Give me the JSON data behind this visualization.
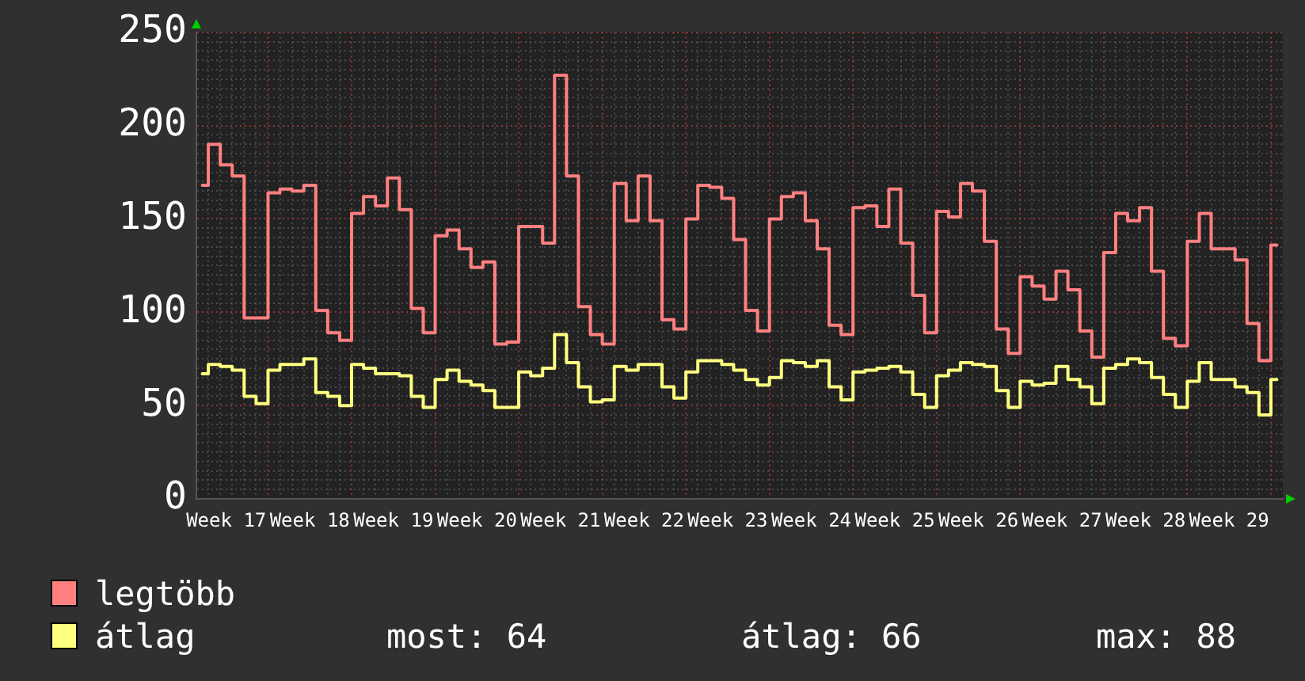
{
  "chart_data": {
    "type": "step",
    "categories": [
      null,
      null,
      "Week 17",
      null,
      null,
      null,
      null,
      null,
      null,
      "Week 18",
      null,
      null,
      null,
      null,
      null,
      null,
      "Week 19",
      null,
      null,
      null,
      null,
      null,
      null,
      "Week 20",
      null,
      null,
      null,
      null,
      null,
      null,
      "Week 21",
      null,
      null,
      null,
      null,
      null,
      null,
      "Week 22",
      null,
      null,
      null,
      null,
      null,
      null,
      "Week 23",
      null,
      null,
      null,
      null,
      null,
      null,
      "Week 24",
      null,
      null,
      null,
      null,
      null,
      null,
      "Week 25",
      null,
      null,
      null,
      null,
      null,
      null,
      "Week 26",
      null,
      null,
      null,
      null,
      null,
      null,
      "Week 27",
      null,
      null,
      null,
      null,
      null,
      null,
      "Week 28",
      null,
      null,
      null,
      null,
      null,
      null,
      "Week 29",
      null,
      null,
      null,
      null
    ],
    "series": [
      {
        "name": "legtöbb",
        "color": "#ff8080",
        "values": [
          168,
          190,
          179,
          173,
          97,
          97,
          164,
          166,
          165,
          168,
          101,
          89,
          85,
          153,
          162,
          157,
          172,
          155,
          102,
          89,
          141,
          144,
          134,
          124,
          127,
          83,
          84,
          146,
          146,
          137,
          227,
          173,
          103,
          88,
          83,
          169,
          149,
          173,
          149,
          96,
          91,
          150,
          168,
          167,
          161,
          139,
          101,
          90,
          150,
          162,
          164,
          149,
          134,
          93,
          88,
          156,
          157,
          146,
          166,
          137,
          109,
          89,
          154,
          151,
          169,
          165,
          138,
          91,
          78,
          119,
          114,
          107,
          122,
          112,
          90,
          76,
          132,
          153,
          149,
          156,
          122,
          86,
          82,
          138,
          153,
          134,
          134,
          128,
          94,
          74,
          136
        ]
      },
      {
        "name": "átlag",
        "color": "#ffff80",
        "values": [
          67,
          72,
          71,
          69,
          55,
          51,
          69,
          72,
          72,
          75,
          57,
          55,
          50,
          72,
          70,
          67,
          67,
          66,
          55,
          49,
          64,
          69,
          63,
          61,
          58,
          49,
          49,
          68,
          66,
          70,
          88,
          73,
          60,
          52,
          53,
          71,
          69,
          72,
          72,
          60,
          54,
          68,
          74,
          74,
          72,
          69,
          64,
          61,
          65,
          74,
          73,
          71,
          74,
          60,
          53,
          68,
          69,
          70,
          71,
          68,
          56,
          49,
          66,
          69,
          73,
          72,
          71,
          58,
          49,
          63,
          61,
          62,
          71,
          64,
          60,
          51,
          70,
          72,
          75,
          73,
          65,
          56,
          49,
          63,
          73,
          64,
          64,
          60,
          57,
          45,
          64
        ]
      }
    ],
    "ylim": [
      0,
      250
    ],
    "yticks": [
      0,
      {
        "value": 5,
        "label": null
      },
      {
        "value": 10,
        "label": null
      },
      {
        "value": 15,
        "label": null
      },
      {
        "value": 20,
        "label": null
      },
      {
        "value": 25,
        "label": null
      },
      {
        "value": 30,
        "label": null
      },
      {
        "value": 35,
        "label": null
      },
      {
        "value": 40,
        "label": null
      },
      {
        "value": 45,
        "label": null
      },
      50,
      {
        "value": 55,
        "label": null
      },
      {
        "value": 60,
        "label": null
      },
      {
        "value": 65,
        "label": null
      },
      {
        "value": 70,
        "label": null
      },
      {
        "value": 75,
        "label": null
      },
      {
        "value": 80,
        "label": null
      },
      {
        "value": 85,
        "label": null
      },
      {
        "value": 90,
        "label": null
      },
      {
        "value": 95,
        "label": null
      },
      100,
      {
        "value": 105,
        "label": null
      },
      {
        "value": 110,
        "label": null
      },
      {
        "value": 115,
        "label": null
      },
      {
        "value": 120,
        "label": null
      },
      {
        "value": 125,
        "label": null
      },
      {
        "value": 130,
        "label": null
      },
      {
        "value": 135,
        "label": null
      },
      {
        "value": 140,
        "label": null
      },
      {
        "value": 145,
        "label": null
      },
      150,
      {
        "value": 155,
        "label": null
      },
      {
        "value": 160,
        "label": null
      },
      {
        "value": 165,
        "label": null
      },
      {
        "value": 170,
        "label": null
      },
      {
        "value": 175,
        "label": null
      },
      {
        "value": 180,
        "label": null
      },
      {
        "value": 185,
        "label": null
      },
      {
        "value": 190,
        "label": null
      },
      {
        "value": 195,
        "label": null
      },
      200,
      {
        "value": 205,
        "label": null
      },
      {
        "value": 210,
        "label": null
      },
      {
        "value": 215,
        "label": null
      },
      {
        "value": 220,
        "label": null
      },
      {
        "value": 225,
        "label": null
      },
      {
        "value": 230,
        "label": null
      },
      {
        "value": 235,
        "label": null
      },
      {
        "value": 240,
        "label": null
      },
      {
        "value": 245,
        "label": null
      },
      250
    ],
    "grid": true,
    "legend": "bottom left",
    "marker": "none",
    "line_style": "solid",
    "annotations": [
      "most: 64",
      "átlag: 66",
      "max: 88"
    ]
  }
}
